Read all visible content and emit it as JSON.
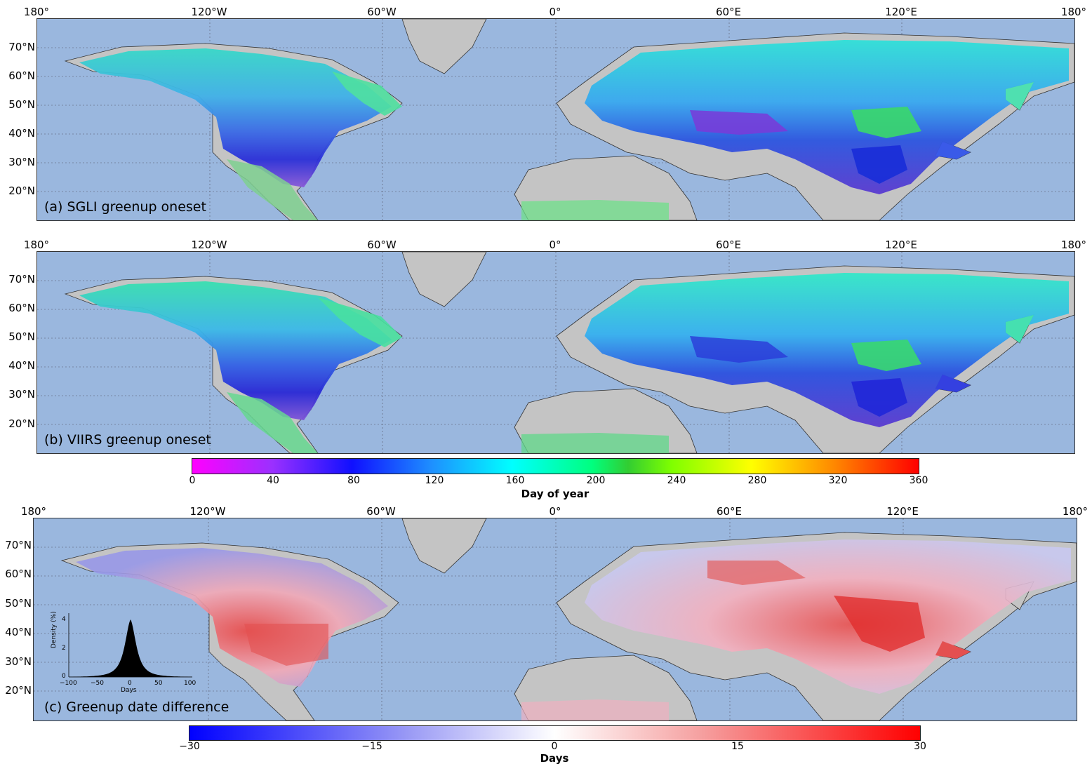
{
  "lon_labels": [
    "180°",
    "120°W",
    "60°W",
    "0°",
    "60°E",
    "120°E",
    "180°"
  ],
  "lat_labels": [
    "70°N",
    "60°N",
    "50°N",
    "40°N",
    "30°N",
    "20°N"
  ],
  "panels": [
    {
      "id": "a",
      "label": "(a) SGLI greenup oneset"
    },
    {
      "id": "b",
      "label": "(b) VIIRS greenup oneset"
    },
    {
      "id": "c",
      "label": "(c) Greenup date difference"
    }
  ],
  "colorbar_doy": {
    "ticks": [
      "0",
      "40",
      "80",
      "120",
      "160",
      "200",
      "240",
      "280",
      "320",
      "360"
    ],
    "title": "Day of year",
    "range": [
      0,
      360
    ]
  },
  "colorbar_diff": {
    "ticks": [
      "−30",
      "−15",
      "0",
      "15",
      "30"
    ],
    "title": "Days",
    "range": [
      -30,
      30
    ]
  },
  "inset": {
    "ylabel": "Density (%)",
    "xlabel": "Days",
    "yticks": [
      "0",
      "2",
      "4"
    ],
    "xticks": [
      "−100",
      "−50",
      "0",
      "50",
      "100"
    ]
  },
  "colors": {
    "ocean": "#9ab7de",
    "land": "#c4c4c4",
    "border": "#333333"
  }
}
